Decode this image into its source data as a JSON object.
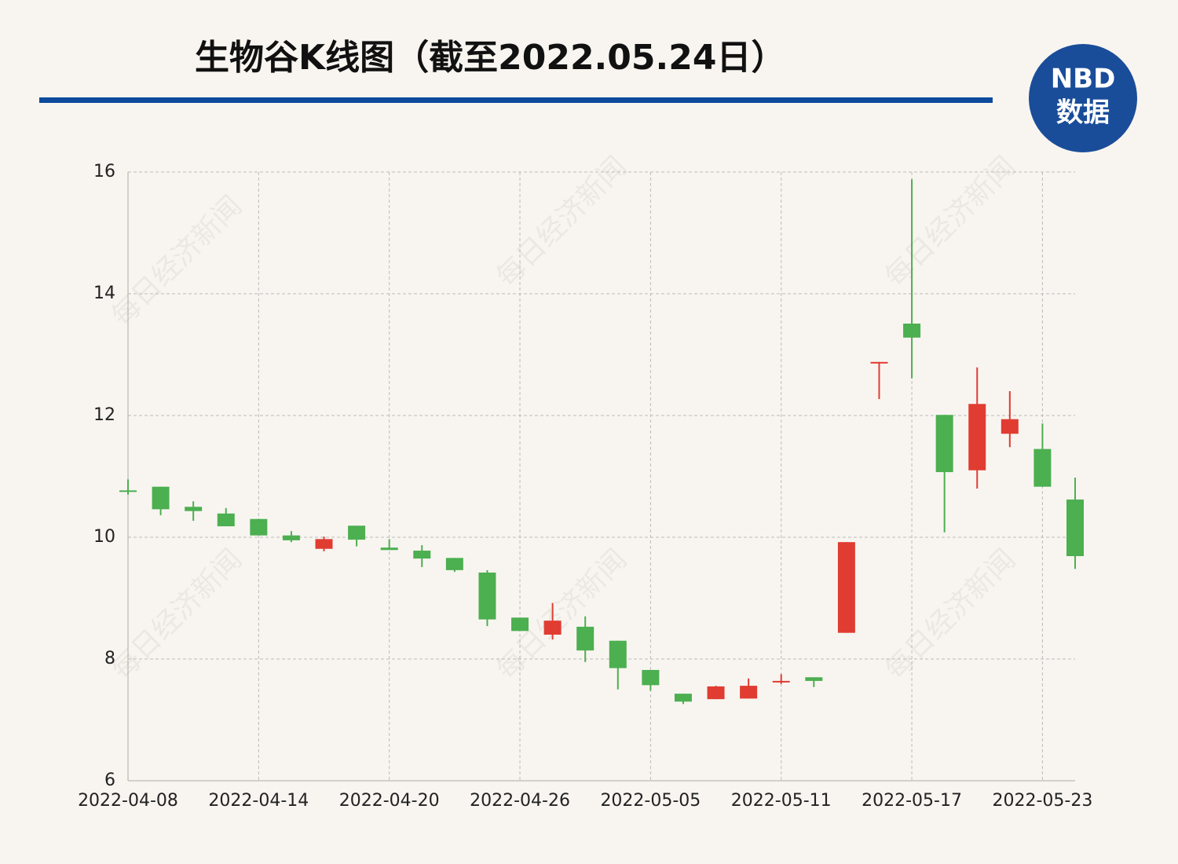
{
  "header": {
    "title": "生物谷K线图（截至2022.05.24日）",
    "logo_top": "NBD",
    "logo_bottom": "数据",
    "watermark": "每日经济新闻"
  },
  "chart_data": {
    "type": "candlestick",
    "categories": [
      "2022-04-08",
      null,
      null,
      null,
      "2022-04-14",
      null,
      null,
      null,
      "2022-04-20",
      null,
      null,
      null,
      "2022-04-26",
      null,
      null,
      null,
      "2022-05-05",
      null,
      null,
      null,
      "2022-05-11",
      null,
      null,
      null,
      "2022-05-17",
      null,
      null,
      null,
      "2022-05-23",
      null
    ],
    "open": [
      10.77,
      10.83,
      10.5,
      10.39,
      10.3,
      10.03,
      9.81,
      10.19,
      9.83,
      9.78,
      9.66,
      9.42,
      8.68,
      8.4,
      8.53,
      8.3,
      7.82,
      7.43,
      7.34,
      7.35,
      7.63,
      7.7,
      8.43,
      12.87,
      13.51,
      12.01,
      11.1,
      11.7,
      11.45,
      10.62
    ],
    "high": [
      10.95,
      10.83,
      10.59,
      10.48,
      10.3,
      10.1,
      10.01,
      10.19,
      9.97,
      9.87,
      9.66,
      9.46,
      8.68,
      8.92,
      8.7,
      8.3,
      7.82,
      7.43,
      7.56,
      7.68,
      7.75,
      7.7,
      9.92,
      12.88,
      15.88,
      12.01,
      12.79,
      12.4,
      11.87,
      10.98
    ],
    "low": [
      10.7,
      10.36,
      10.27,
      10.18,
      10.03,
      9.92,
      9.77,
      9.85,
      9.79,
      9.51,
      9.43,
      8.54,
      8.46,
      8.32,
      7.95,
      7.5,
      7.48,
      7.26,
      7.34,
      7.35,
      7.59,
      7.54,
      8.43,
      12.27,
      12.61,
      10.08,
      10.8,
      11.48,
      10.83,
      9.48
    ],
    "close": [
      10.76,
      10.46,
      10.43,
      10.18,
      10.03,
      9.95,
      9.97,
      9.96,
      9.79,
      9.65,
      9.46,
      8.65,
      8.46,
      8.63,
      8.14,
      7.85,
      7.57,
      7.3,
      7.55,
      7.56,
      7.64,
      7.64,
      9.92,
      12.88,
      13.28,
      11.07,
      12.19,
      11.94,
      10.83,
      9.69
    ],
    "up_color": "#e03c32",
    "down_color": "#4caf50",
    "ylim": [
      6,
      16
    ],
    "yticks": [
      6,
      8,
      10,
      12,
      14,
      16
    ],
    "grid": true
  }
}
